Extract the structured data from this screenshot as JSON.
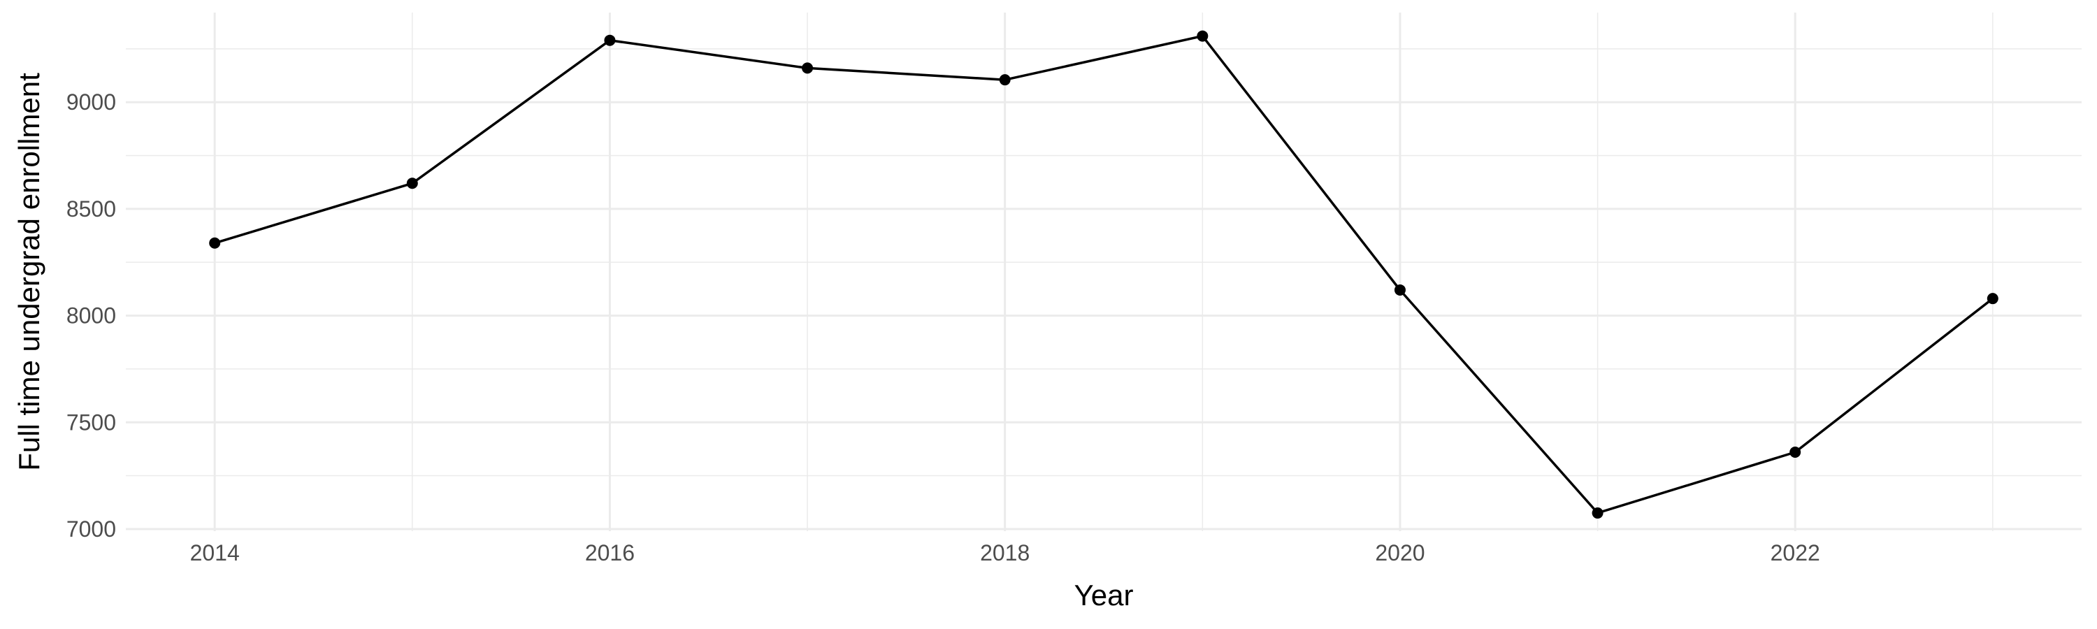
{
  "chart_data": {
    "type": "line",
    "title": "",
    "xlabel": "Year",
    "ylabel": "Full time undergrad enrollment",
    "x": [
      2014,
      2015,
      2016,
      2017,
      2018,
      2019,
      2020,
      2021,
      2022,
      2023
    ],
    "series": [
      {
        "values": [
          8340,
          8620,
          9290,
          9160,
          9105,
          9310,
          8120,
          7075,
          7360,
          8080
        ]
      }
    ],
    "x_ticks": [
      2014,
      2016,
      2018,
      2020,
      2022
    ],
    "x_tick_labels": [
      "2014",
      "2016",
      "2018",
      "2020",
      "2022"
    ],
    "y_ticks": [
      7000,
      7500,
      8000,
      8500,
      9000
    ],
    "y_tick_labels": [
      "7000",
      "7500",
      "8000",
      "8500",
      "9000"
    ],
    "xlim": [
      2013.55,
      2023.45
    ],
    "ylim": [
      6990,
      9420
    ],
    "grid": true,
    "legend": "none",
    "colors": {
      "line": "#000000",
      "grid": "#ebebeb",
      "background": "#ffffff"
    }
  }
}
